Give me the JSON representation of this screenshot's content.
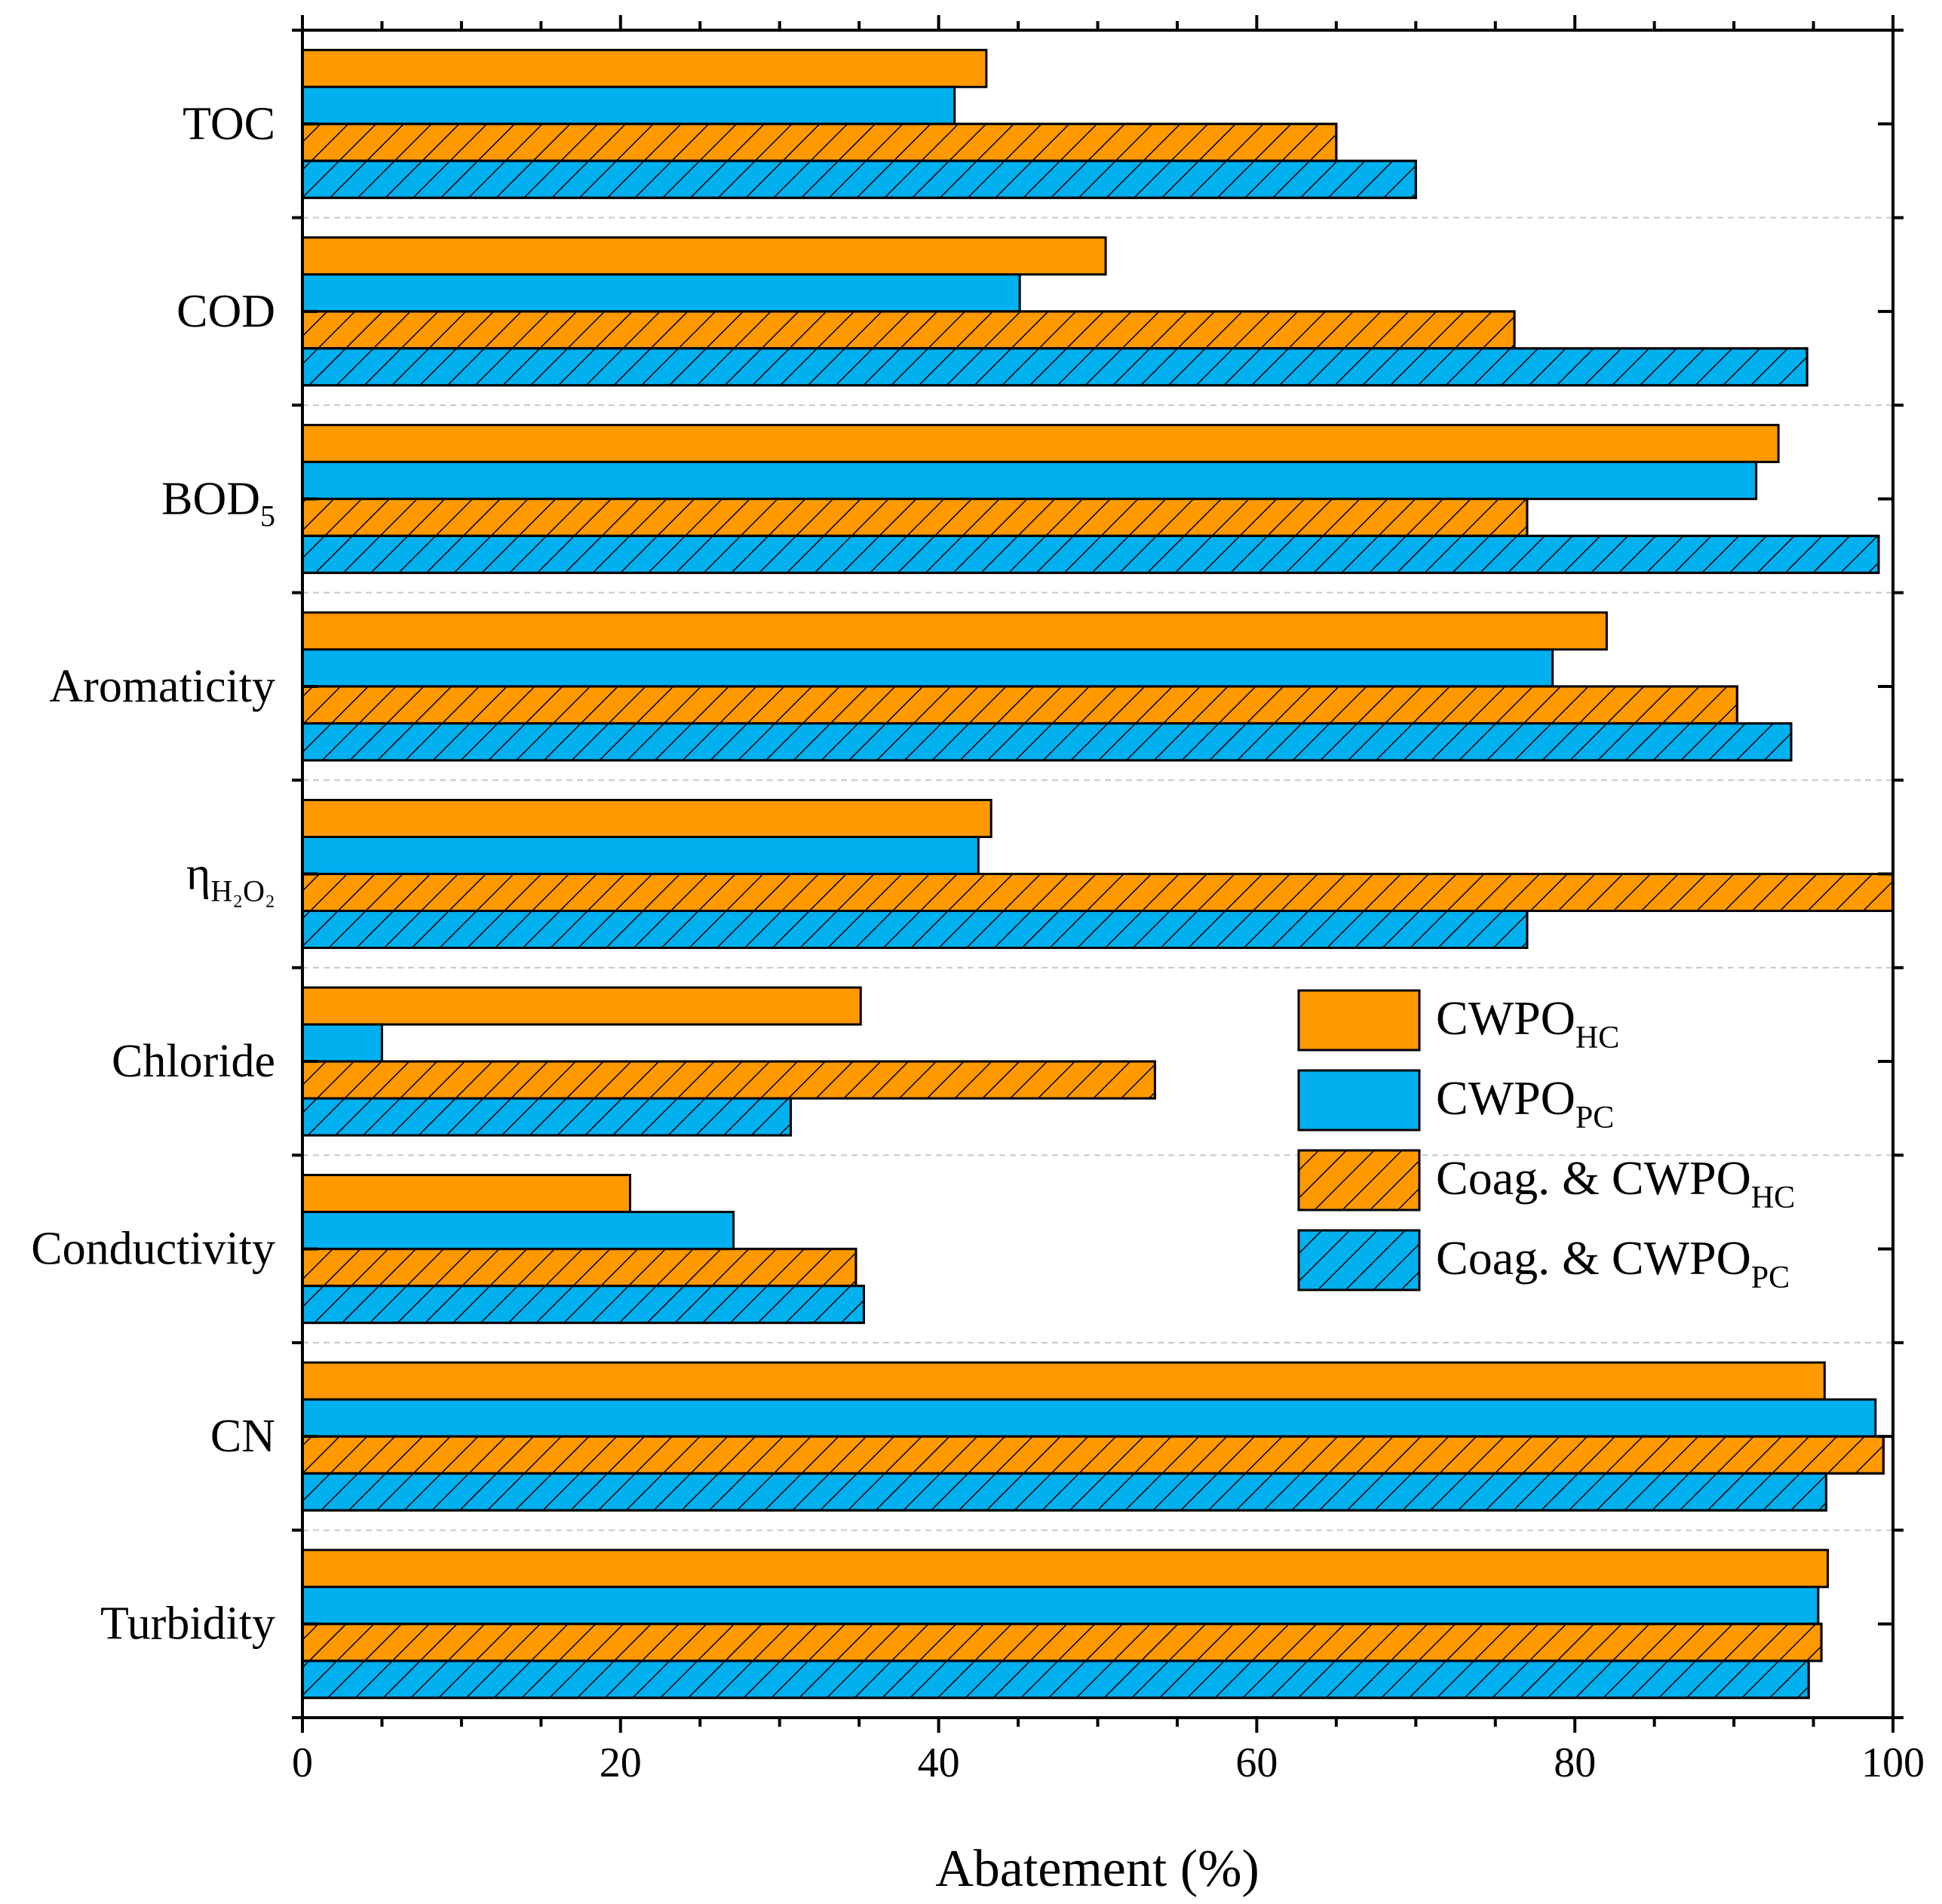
{
  "chart_data": {
    "type": "bar",
    "orientation": "horizontal",
    "xlabel": "Abatement (%)",
    "ylabel": "",
    "xlim": [
      0,
      100
    ],
    "xticks": [
      0,
      20,
      40,
      60,
      80,
      100
    ],
    "grid": "dashed horizontal separators between categories",
    "legend_position": "right, middle",
    "categories": [
      {
        "label": "TOC",
        "sub": ""
      },
      {
        "label": "COD",
        "sub": ""
      },
      {
        "label": "BOD",
        "sub": "5"
      },
      {
        "label": "Aromaticity",
        "sub": ""
      },
      {
        "label": "η",
        "sub": "H₂O₂"
      },
      {
        "label": "Chloride",
        "sub": ""
      },
      {
        "label": "Conductivity",
        "sub": ""
      },
      {
        "label": "CN",
        "sub": ""
      },
      {
        "label": "Turbidity",
        "sub": ""
      }
    ],
    "series": [
      {
        "name": "CWPO",
        "sub": "HC",
        "color": "#FF9900",
        "hatched": false,
        "values": [
          43.0,
          50.5,
          92.8,
          82.0,
          43.3,
          35.1,
          20.6,
          95.7,
          95.9
        ]
      },
      {
        "name": "CWPO",
        "sub": "PC",
        "color": "#00B0EF",
        "hatched": false,
        "values": [
          41.0,
          45.1,
          91.4,
          78.6,
          42.5,
          5.0,
          27.1,
          98.9,
          95.3
        ]
      },
      {
        "name": "Coag. & CWPO",
        "sub": "HC",
        "color": "#FF9900",
        "hatched": true,
        "values": [
          65.0,
          76.2,
          77.0,
          90.2,
          100.0,
          53.6,
          34.8,
          99.4,
          95.5
        ]
      },
      {
        "name": "Coag. & CWPO",
        "sub": "PC",
        "color": "#00B0EF",
        "hatched": true,
        "values": [
          70.0,
          94.6,
          99.1,
          93.6,
          77.0,
          30.7,
          35.3,
          95.8,
          94.7
        ]
      }
    ]
  }
}
